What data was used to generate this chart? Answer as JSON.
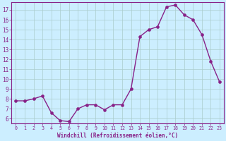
{
  "x": [
    0,
    1,
    2,
    3,
    4,
    5,
    6,
    7,
    8,
    9,
    10,
    11,
    12,
    13,
    14,
    15,
    16,
    17,
    18,
    19,
    20,
    21,
    22,
    23
  ],
  "y": [
    7.8,
    7.8,
    8.0,
    8.3,
    6.6,
    5.8,
    5.7,
    7.0,
    7.4,
    7.4,
    6.9,
    7.4,
    7.4,
    9.0,
    14.3,
    15.0,
    15.3,
    17.3,
    17.5,
    16.5,
    16.0,
    14.5,
    11.8,
    9.7
  ],
  "line_color": "#882288",
  "marker_color": "#882288",
  "bg_color": "#cceeff",
  "grid_color": "#aacccc",
  "xlabel": "Windchill (Refroidissement éolien,°C)",
  "xlim": [
    -0.5,
    23.5
  ],
  "ylim": [
    5.5,
    17.8
  ],
  "yticks": [
    6,
    7,
    8,
    9,
    10,
    11,
    12,
    13,
    14,
    15,
    16,
    17
  ],
  "xticks": [
    0,
    1,
    2,
    3,
    4,
    5,
    6,
    7,
    8,
    9,
    10,
    11,
    12,
    13,
    14,
    15,
    16,
    17,
    18,
    19,
    20,
    21,
    22,
    23
  ],
  "label_color": "#882288",
  "tick_color": "#882288",
  "spine_color": "#882288",
  "marker_size": 3,
  "line_width": 1.0
}
